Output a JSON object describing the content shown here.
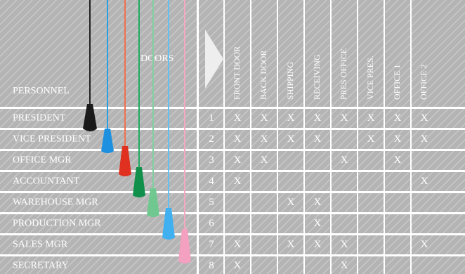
{
  "header": {
    "personnel": "PERSONNEL",
    "doors": "DOORS"
  },
  "columns": [
    "FRONT DOOR",
    "BACK DOOR",
    "SHIPPING",
    "RECEIVING",
    "PRES OFFICE",
    "VICE PRES.",
    "OFFICE 1",
    "OFFICE 2"
  ],
  "rows": [
    {
      "name": "PRESIDENT",
      "number": "1",
      "cells": [
        "X",
        "X",
        "X",
        "X",
        "X",
        "X",
        "X",
        "X"
      ]
    },
    {
      "name": "VICE PRESIDENT",
      "number": "2",
      "cells": [
        "X",
        "X",
        "X",
        "X",
        null,
        "X",
        "X",
        "X"
      ]
    },
    {
      "name": "OFFICE MGR",
      "number": "3",
      "cells": [
        "X",
        "X",
        null,
        null,
        "X",
        null,
        "X",
        null
      ]
    },
    {
      "name": "ACCOUNTANT",
      "number": "4",
      "cells": [
        "X",
        null,
        null,
        null,
        null,
        null,
        null,
        "X"
      ]
    },
    {
      "name": "WAREHOUSE MGR",
      "number": "5",
      "cells": [
        null,
        null,
        "X",
        "X",
        null,
        null,
        null,
        null
      ]
    },
    {
      "name": "PRODUCTION MGR",
      "number": "6",
      "cells": [
        null,
        null,
        null,
        "X",
        null,
        null,
        null,
        null
      ]
    },
    {
      "name": "SALES MGR",
      "number": "7",
      "cells": [
        "X",
        null,
        "X",
        "X",
        "X",
        null,
        null,
        "X"
      ]
    },
    {
      "name": "SECRETARY",
      "number": "8",
      "cells": [
        "X",
        null,
        null,
        null,
        "X",
        null,
        null,
        null
      ]
    }
  ]
}
